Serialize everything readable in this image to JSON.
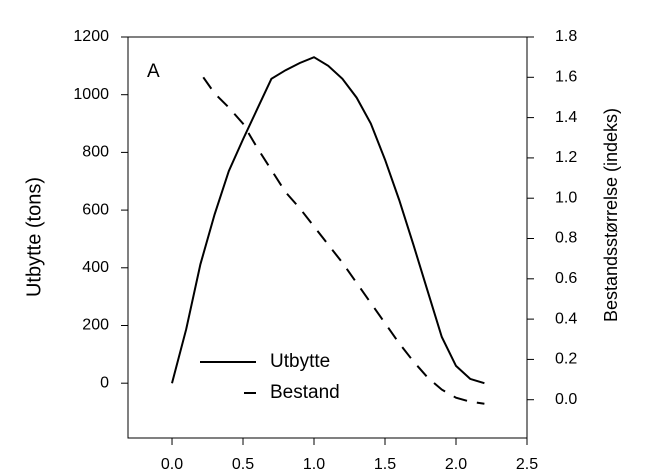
{
  "chart_data": {
    "type": "line",
    "annotation": "A",
    "y_label": "Utbytte (tons)",
    "y2_label": "Bestandsstørrelse (indeks)",
    "xlim": [
      -0.31,
      2.5
    ],
    "xticks": [
      {
        "value": 0,
        "label": "0.0"
      },
      0.5,
      {
        "value": 1,
        "label": "1.0"
      },
      1.5,
      {
        "value": 2,
        "label": "2.0"
      },
      2.5
    ],
    "ylim": [
      -190,
      1200
    ],
    "yticks": [
      0,
      200,
      400,
      600,
      800,
      1000,
      1200
    ],
    "y2lim": [
      -0.19,
      1.8
    ],
    "y2ticks": [
      {
        "value": 0,
        "label": "0.0"
      },
      0.2,
      0.4,
      0.6,
      0.8,
      {
        "value": 1,
        "label": "1.0"
      },
      1.2,
      1.4,
      1.6,
      1.8
    ],
    "legend": "lower left",
    "series": [
      {
        "name": "Utbytte",
        "color": "#000000",
        "style": "solid",
        "x": [
          0,
          0.1,
          0.2,
          0.3,
          0.4,
          0.5,
          0.6,
          0.7,
          0.8,
          0.9,
          1.0,
          1.1,
          1.2,
          1.3,
          1.4,
          1.5,
          1.6,
          1.7,
          1.8,
          1.9,
          2.0,
          2.1,
          2.2
        ],
        "values": [
          0,
          187,
          412,
          585,
          735,
          845,
          950,
          1055,
          1085,
          1110,
          1130,
          1100,
          1055,
          990,
          900,
          775,
          635,
          480,
          320,
          160,
          60,
          15,
          0
        ]
      },
      {
        "name": "Bestand",
        "color": "#000000",
        "style": "dashed",
        "axis": "y2",
        "x": [
          0.22,
          0.3,
          0.4,
          0.5,
          0.6,
          0.7,
          0.8,
          0.9,
          1.0,
          1.1,
          1.2,
          1.3,
          1.4,
          1.5,
          1.6,
          1.7,
          1.8,
          1.9,
          2.0,
          2.1,
          2.2
        ],
        "values": [
          1.6,
          1.52,
          1.45,
          1.37,
          1.25,
          1.14,
          1.03,
          0.95,
          0.86,
          0.77,
          0.68,
          0.58,
          0.48,
          0.38,
          0.28,
          0.19,
          0.11,
          0.05,
          0.01,
          -0.01,
          -0.02
        ]
      }
    ]
  }
}
